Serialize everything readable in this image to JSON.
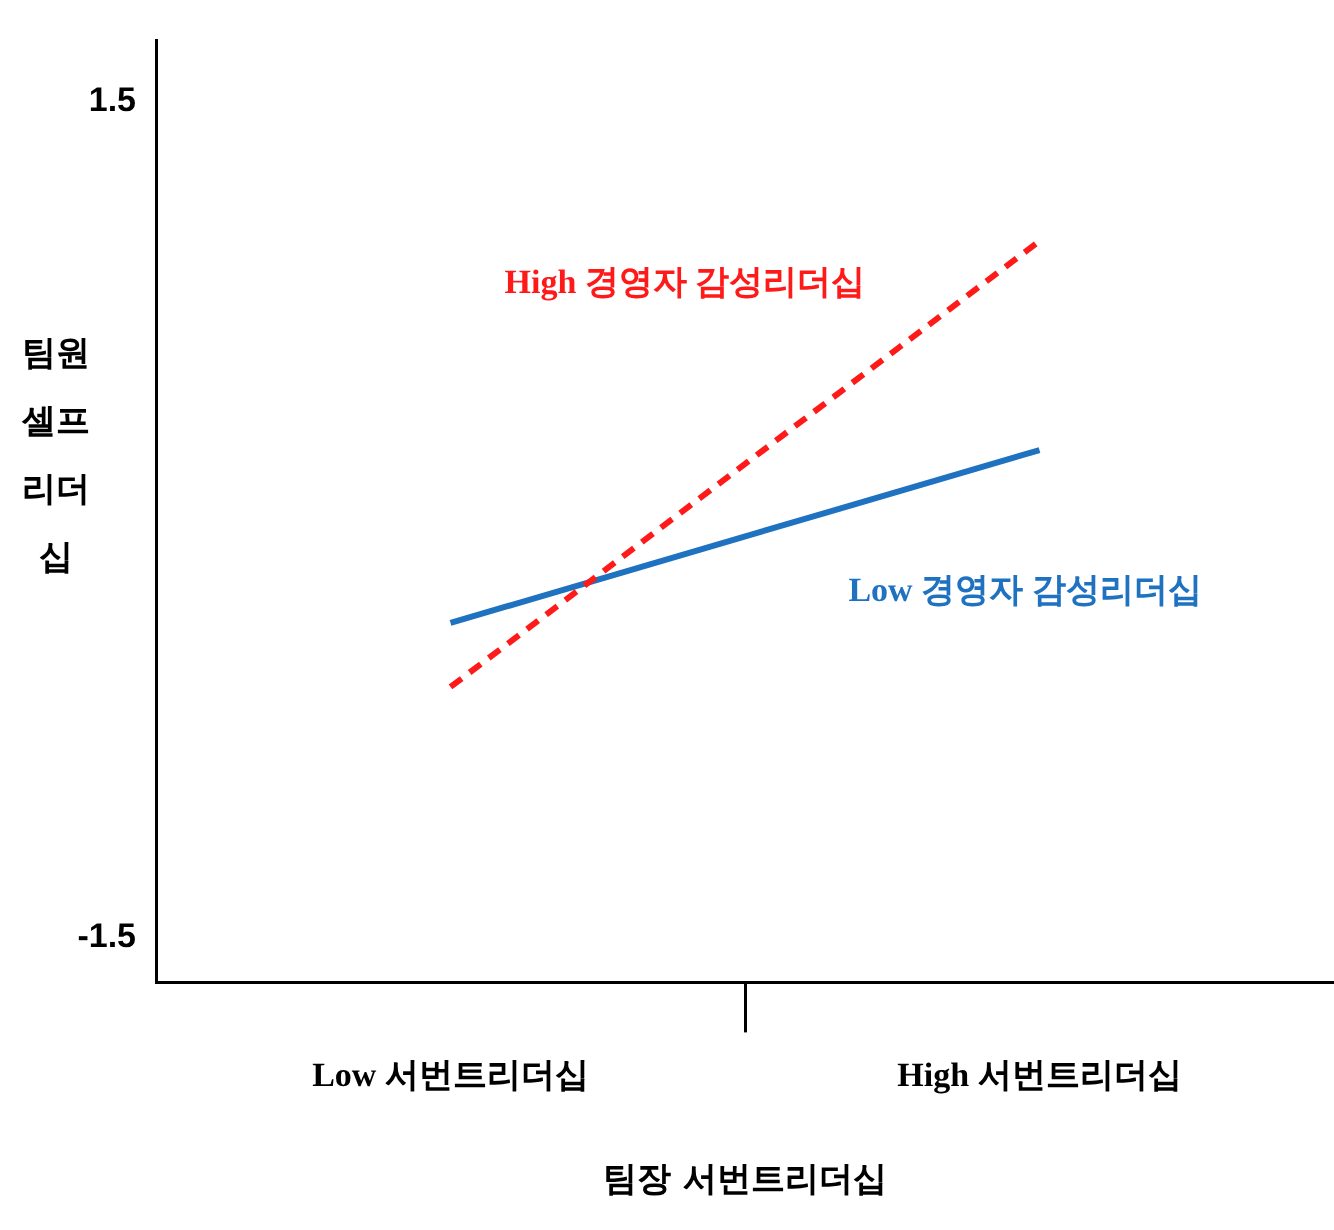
{
  "chart_data": {
    "type": "line",
    "xlabel": "팀장 서번트리더십",
    "ylabel": "팀원 셀프리더십",
    "categories": [
      "Low 서번트리더십",
      "High 서번트리더십"
    ],
    "ylim": [
      -1.66,
      1.72
    ],
    "yticks": [
      -1.5,
      1.5
    ],
    "series": [
      {
        "name": "High 경영자 감성리더십",
        "color": "#ff1a1a",
        "line_style": "dashed",
        "values": [
          -0.6,
          1.0
        ]
      },
      {
        "name": "Low 경영자 감성리더십",
        "color": "#1f72c0",
        "line_style": "solid",
        "values": [
          -0.37,
          0.25
        ]
      }
    ],
    "grid": false,
    "legend": false,
    "marker": "none"
  }
}
